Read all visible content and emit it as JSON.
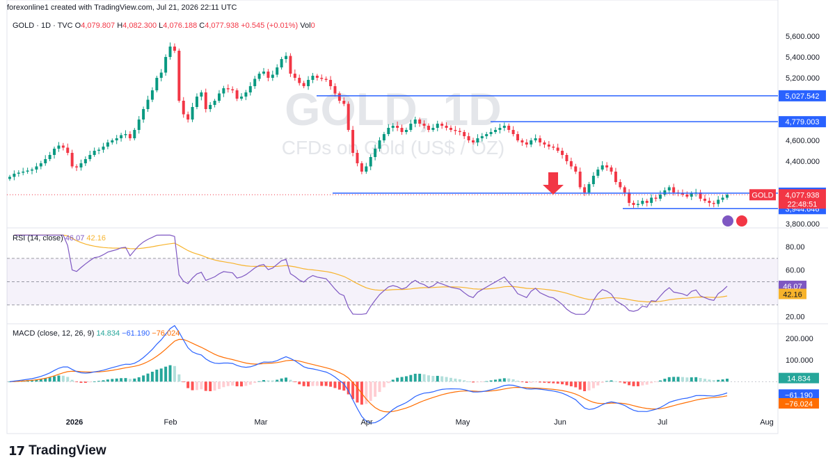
{
  "header": {
    "attribution": "forexonline1 created with TradingView.com, Jul 21, 2026 22:11 UTC"
  },
  "legend": {
    "symbol": "GOLD · 1D · TVC",
    "open_label": "O",
    "open": "4,079.807",
    "high_label": "H",
    "high": "4,082.300",
    "low_label": "L",
    "low": "4,076.188",
    "close_label": "C",
    "close": "4,077.938",
    "change": "+0.545 (+0.01%)",
    "vol_label": "Vol",
    "vol": "0"
  },
  "watermark": {
    "line1": "GOLD, 1D",
    "line2": "CFDs on Gold (US$ / OZ)"
  },
  "rsi_legend": {
    "label": "RSI (14, close)",
    "value1": "46.07",
    "value2": "42.16"
  },
  "macd_legend": {
    "label": "MACD (close, 12, 26, 9)",
    "value1": "14.834",
    "value2": "−61.190",
    "value3": "−76.024"
  },
  "footer": {
    "brand": "TradingView"
  },
  "colors": {
    "up": "#089981",
    "down": "#f23645",
    "hline": "#2962ff",
    "rsi": "#7e57c2",
    "rsi_ma": "#f7b32b",
    "macd": "#2962ff",
    "signal": "#ff6d00"
  },
  "chart_data": [
    {
      "type": "candlestick",
      "name": "price",
      "y_axis_ticks": [
        "5,600.000",
        "5,400.000",
        "5,200.000",
        "4,800.000",
        "4,600.000",
        "4,400.000",
        "3,800.000"
      ],
      "y_axis_ticks_values": [
        5600,
        5400,
        5200,
        4800,
        4600,
        4400,
        3800
      ],
      "ylim": [
        3780,
        5800
      ],
      "x_axis_labels": [
        "2026",
        "Feb",
        "Mar",
        "Apr",
        "May",
        "Jun",
        "Jul",
        "Aug"
      ],
      "horizontal_levels": [
        {
          "label": "5,027.542",
          "value": 5027.542
        },
        {
          "label": "4,779.003",
          "value": 4779.003
        },
        {
          "label": "4,093.287",
          "value": 4093.287
        },
        {
          "label": "3,944.646",
          "value": 3944.646
        }
      ],
      "current_price": {
        "symbol": "GOLD",
        "label": "4,077.938",
        "value": 4077.938,
        "countdown": "22:48:51"
      },
      "annotation": "down-arrow",
      "closes": [
        4250,
        4280,
        4290,
        4300,
        4310,
        4320,
        4350,
        4380,
        4420,
        4460,
        4520,
        4550,
        4530,
        4480,
        4350,
        4340,
        4380,
        4420,
        4460,
        4500,
        4510,
        4540,
        4580,
        4600,
        4620,
        4650,
        4660,
        4620,
        4700,
        4800,
        4900,
        4990,
        5080,
        5200,
        5250,
        5400,
        5500,
        5460,
        4980,
        4850,
        4800,
        4920,
        5020,
        5060,
        4900,
        4940,
        4980,
        5050,
        5100,
        5090,
        5080,
        5000,
        5020,
        5060,
        5120,
        5190,
        5240,
        5260,
        5200,
        5230,
        5300,
        5380,
        5410,
        5240,
        5200,
        5150,
        5120,
        5180,
        5220,
        5200,
        5190,
        5180,
        5120,
        5050,
        4980,
        4950,
        4700,
        4480,
        4380,
        4300,
        4350,
        4440,
        4520,
        4600,
        4660,
        4720,
        4740,
        4720,
        4680,
        4700,
        4760,
        4800,
        4760,
        4740,
        4700,
        4720,
        4760,
        4740,
        4720,
        4700,
        4690,
        4680,
        4640,
        4600,
        4580,
        4620,
        4640,
        4660,
        4680,
        4700,
        4720,
        4740,
        4700,
        4660,
        4600,
        4580,
        4560,
        4600,
        4620,
        4580,
        4560,
        4540,
        4530,
        4500,
        4460,
        4400,
        4350,
        4300,
        4150,
        4100,
        4180,
        4260,
        4320,
        4360,
        4340,
        4300,
        4200,
        4150,
        4100,
        4000,
        3980,
        3990,
        4020,
        4000,
        4050,
        4040,
        4080,
        4120,
        4150,
        4100,
        4090,
        4080,
        4060,
        4090,
        4100,
        4040,
        4020,
        4000,
        3990,
        4030,
        4050,
        4078
      ],
      "ohlc_source": "approximate, read from chart"
    },
    {
      "type": "line",
      "name": "rsi",
      "y_axis_ticks": [
        "80.00",
        "60.00",
        "20.00"
      ],
      "y_axis_ticks_values": [
        80,
        60,
        20
      ],
      "ylim": [
        15,
        95
      ],
      "bands": [
        70,
        50,
        30
      ],
      "last_values": [
        {
          "label": "46.07",
          "value": 46.07
        },
        {
          "label": "42.16",
          "value": 42.16
        }
      ]
    },
    {
      "type": "line",
      "name": "macd",
      "y_axis_ticks": [
        "200.000",
        "100.000"
      ],
      "y_axis_ticks_values": [
        200,
        100
      ],
      "ylim": [
        -220,
        260
      ],
      "last_values": [
        {
          "label": "14.834",
          "value": 14.834
        },
        {
          "label": "−61.190",
          "value": -61.19
        },
        {
          "label": "−76.024",
          "value": -76.024
        }
      ]
    }
  ]
}
